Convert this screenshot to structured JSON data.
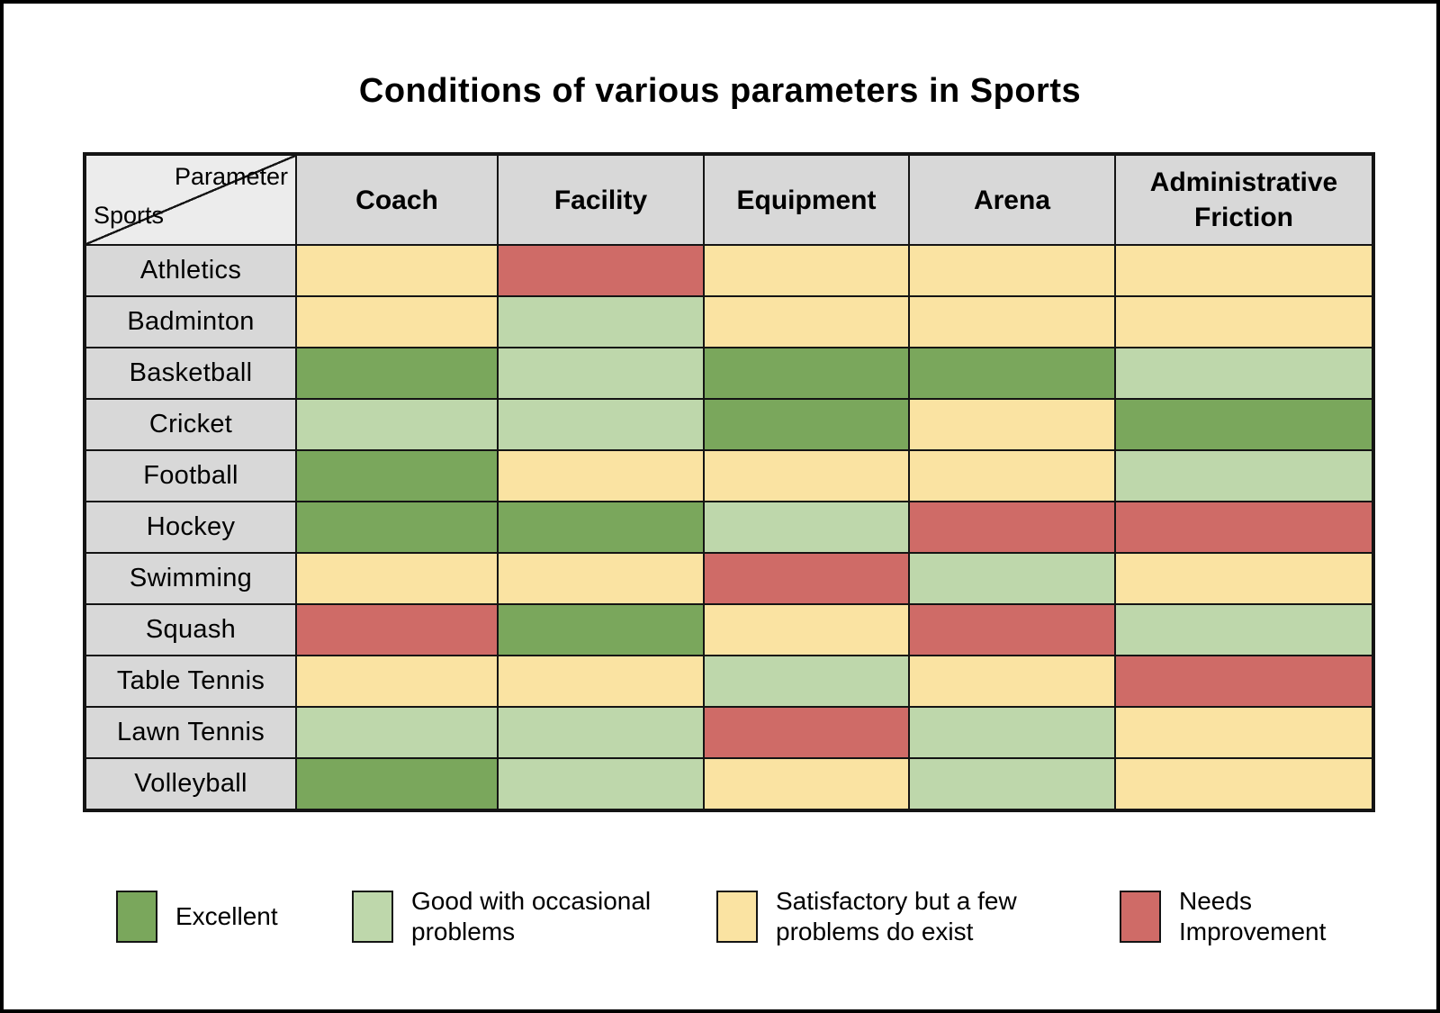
{
  "colors": {
    "background": "#ffffff",
    "header_bg": "#d8d8d8",
    "corner_bg": "#ececec",
    "row_label_bg": "#d8d8d8",
    "grid_border": "#141414"
  },
  "chart_data": {
    "type": "heatmap",
    "title": "Conditions of various parameters in Sports",
    "corner_header": {
      "top_right": "Parameter",
      "bottom_left": "Sports"
    },
    "x_categories": [
      "Coach",
      "Facility",
      "Equipment",
      "Arena",
      "Administrative Friction"
    ],
    "y_categories": [
      "Athletics",
      "Badminton",
      "Basketball",
      "Cricket",
      "Football",
      "Hockey",
      "Swimming",
      "Squash",
      "Table Tennis",
      "Lawn Tennis",
      "Volleyball"
    ],
    "values": [
      [
        "S",
        "N",
        "S",
        "S",
        "S"
      ],
      [
        "S",
        "G",
        "S",
        "S",
        "S"
      ],
      [
        "E",
        "G",
        "E",
        "E",
        "G"
      ],
      [
        "G",
        "G",
        "E",
        "S",
        "E"
      ],
      [
        "E",
        "S",
        "S",
        "S",
        "G"
      ],
      [
        "E",
        "E",
        "G",
        "N",
        "N"
      ],
      [
        "S",
        "S",
        "N",
        "G",
        "S"
      ],
      [
        "N",
        "E",
        "S",
        "N",
        "G"
      ],
      [
        "S",
        "S",
        "G",
        "S",
        "N"
      ],
      [
        "G",
        "G",
        "N",
        "G",
        "S"
      ],
      [
        "E",
        "G",
        "S",
        "G",
        "S"
      ]
    ],
    "legend_position": "bottom",
    "grid": true,
    "legend": [
      {
        "code": "E",
        "label": "Excellent",
        "color": "#7aa75c"
      },
      {
        "code": "G",
        "label": "Good with occasional\nproblems",
        "color": "#bed7ab"
      },
      {
        "code": "S",
        "label": "Satisfactory but a few\nproblems do exist",
        "color": "#fae3a2"
      },
      {
        "code": "N",
        "label": "Needs\nImprovement",
        "color": "#cf6b67"
      }
    ]
  }
}
